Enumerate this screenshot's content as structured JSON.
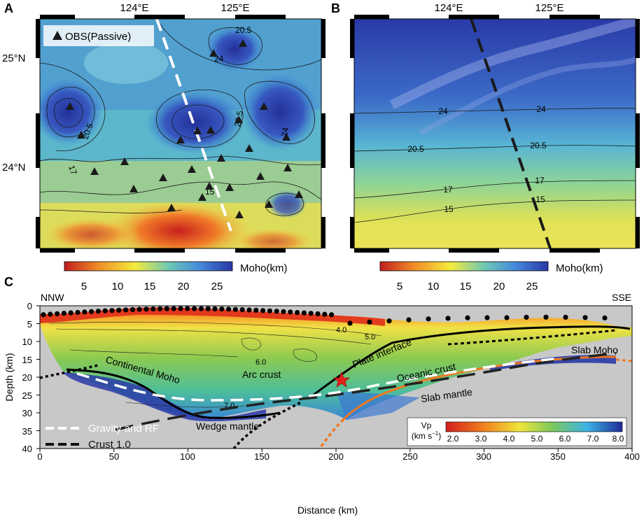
{
  "panel_a": {
    "letter": "A",
    "lon_ticks": [
      "124°E",
      "125°E"
    ],
    "lat_ticks": [
      "25°N",
      "24°N"
    ],
    "legend_label": "OBS(Passive)",
    "contour_labels": [
      "20.5",
      "24",
      "20.5",
      "20.5",
      "24",
      "17",
      "15"
    ],
    "obs_count": 29
  },
  "panel_b": {
    "letter": "B",
    "lon_ticks": [
      "124°E",
      "125°E"
    ],
    "contour_labels": [
      "24",
      "24",
      "20.5",
      "20.5",
      "17",
      "17",
      "15",
      "15"
    ]
  },
  "moho_colorbar": {
    "label": "Moho(km)",
    "ticks": [
      "5",
      "10",
      "15",
      "20",
      "25"
    ],
    "colors": [
      "#c21e1e",
      "#f08c28",
      "#f5eb3c",
      "#6ec8b4",
      "#468cdc",
      "#2a38a8"
    ]
  },
  "panel_c": {
    "letter": "C",
    "left_dir": "NNW",
    "right_dir": "SSE",
    "xlabel": "Distance (km)",
    "ylabel": "Depth (km)",
    "x_ticks": [
      "0",
      "50",
      "100",
      "150",
      "200",
      "250",
      "300",
      "350",
      "400"
    ],
    "y_ticks": [
      "0",
      "5",
      "10",
      "15",
      "20",
      "25",
      "30",
      "35",
      "40"
    ],
    "velocity_labels": [
      "4.0",
      "5.0",
      "6.0",
      "7.0"
    ],
    "annotations": {
      "continental_moho": "Continental Moho",
      "arc_crust": "Arc crust",
      "plate_interface": "Plate interface",
      "oceanic_crust": "Oceanic crust",
      "slab_moho": "Slab Moho",
      "slab_mantle": "Slab mantle",
      "wedge_mantle": "Wedge mantle"
    },
    "legend": {
      "gravity_rf": "Gravity and RF",
      "crust1": "Crust 1.0"
    },
    "vp_colorbar": {
      "title": "Vp",
      "unit": "(km s",
      "unit_exp": "−1",
      "unit_close": ")",
      "ticks": [
        "2.0",
        "3.0",
        "4.0",
        "5.0",
        "6.0",
        "7.0",
        "8.0"
      ]
    }
  }
}
